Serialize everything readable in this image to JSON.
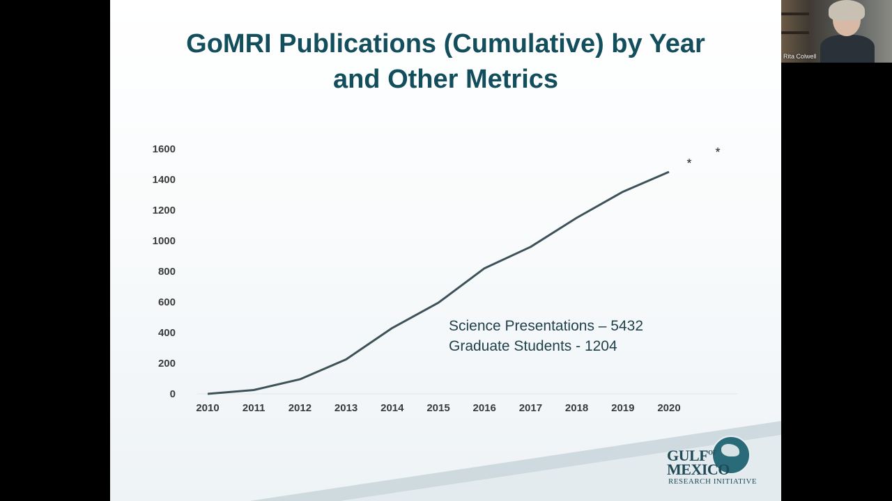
{
  "slide": {
    "title_line_1": "GoMRI Publications (Cumulative) by Year",
    "title_line_2": "and Other Metrics",
    "annotation_line_1": "Science Presentations – 5432",
    "annotation_line_2": "Graduate Students - 1204",
    "asterisk_1": "*",
    "asterisk_2": "*",
    "logo_line_1": "GULF",
    "logo_line_1_sup": "OF",
    "logo_line_2": "MEXICO",
    "logo_line_3": "RESEARCH INITIATIVE"
  },
  "participant": {
    "name": "Rita Colwell"
  },
  "colors": {
    "title": "#124e5c",
    "line": "#3d5258",
    "slide_background": "#ffffff",
    "frame": "#000000"
  },
  "chart_data": {
    "type": "line",
    "title": "GoMRI Publications (Cumulative) by Year and Other Metrics",
    "xlabel": "",
    "ylabel": "",
    "categories": [
      "2010",
      "2011",
      "2012",
      "2013",
      "2014",
      "2015",
      "2016",
      "2017",
      "2018",
      "2019",
      "2020"
    ],
    "values": [
      0,
      25,
      95,
      225,
      430,
      595,
      820,
      960,
      1150,
      1320,
      1450
    ],
    "ylim": [
      0,
      1600
    ],
    "yticks": [
      0,
      200,
      400,
      600,
      800,
      1000,
      1200,
      1400,
      1600
    ],
    "grid": false,
    "legend": "none"
  }
}
